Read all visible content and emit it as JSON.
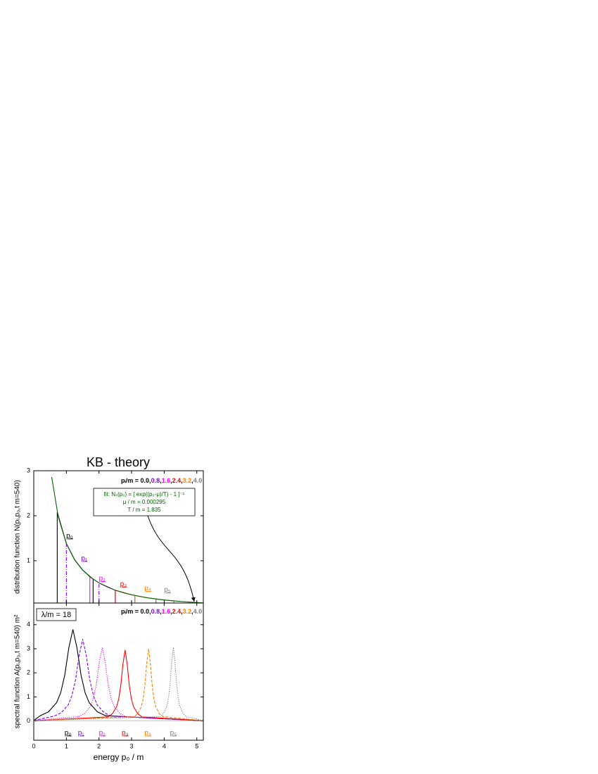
{
  "chart_data": [
    {
      "type": "line",
      "title": "KB - theory",
      "ylabel": "distribution function  N(pᵢ,p₀,t m=540)",
      "xlim": [
        0,
        5.2
      ],
      "ylim": [
        0.06,
        3
      ],
      "yticks": [
        1,
        2,
        3
      ],
      "legend_prefix": "pᵢ/m = ",
      "legend_separator": ",",
      "legend_values": [
        {
          "value": 0,
          "label": "0.0"
        },
        {
          "value": 0.8,
          "label": "0.8"
        },
        {
          "value": 1.6,
          "label": "1.6"
        },
        {
          "value": 2.4,
          "label": "2.4"
        },
        {
          "value": 3.2,
          "label": "3.2"
        },
        {
          "value": 4,
          "label": "4.0"
        }
      ],
      "annotations": [
        "fit:  Nₛ(p₀) = [ exp((p₀-μ)/T) - 1 ]⁻¹",
        "μ / m  =  0.000295",
        "T / m  =  1.835"
      ],
      "series": [
        {
          "name": "p₀",
          "color": "#000000",
          "style": "solid",
          "x": [
            0.72,
            0.72,
            1.0,
            1.25,
            1.5,
            1.82,
            1.82
          ],
          "values": [
            0.06,
            2.08,
            1.38,
            1.025,
            0.791,
            0.59,
            0.06
          ]
        },
        {
          "name": "p₁",
          "color": "#7f00ff",
          "style": "dash-dot",
          "x": [
            1.0,
            1.0,
            1.25,
            1.5,
            1.75,
            2.0,
            2.0
          ],
          "values": [
            0.06,
            1.38,
            1.025,
            0.791,
            0.627,
            0.507,
            0.06
          ]
        },
        {
          "name": "p₂",
          "color": "#ff00ff",
          "style": "solid",
          "x": [
            1.72,
            1.72,
            2.0,
            2.25,
            2.5,
            2.5
          ],
          "values": [
            0.06,
            0.643,
            0.507,
            0.415,
            0.344,
            0.06
          ]
        },
        {
          "name": "p₃",
          "color": "#ff0000",
          "style": "solid",
          "x": [
            2.5,
            2.5,
            2.8,
            3.1,
            3.1
          ],
          "values": [
            0.06,
            0.344,
            0.278,
            0.226,
            0.06
          ]
        },
        {
          "name": "p₄",
          "color": "#ff8000",
          "style": "solid",
          "x": [
            3.1,
            3.1,
            3.4,
            3.75,
            3.75
          ],
          "values": [
            0.06,
            0.226,
            0.186,
            0.149,
            0.06
          ]
        },
        {
          "name": "p₅",
          "color": "#808080",
          "style": "solid",
          "x": [
            3.75,
            3.75,
            4.0,
            4.3,
            4.3
          ],
          "values": [
            0.06,
            0.149,
            0.127,
            0.106,
            0.06
          ]
        },
        {
          "color": "#006400",
          "style": "solid",
          "x": [
            0.55,
            0.75,
            1.0,
            1.25,
            1.5,
            1.75,
            2.0,
            2.5,
            3.0,
            3.5,
            4.0,
            4.5,
            5.0,
            5.2
          ],
          "values": [
            2.86,
            1.98,
            1.38,
            1.025,
            0.791,
            0.627,
            0.507,
            0.344,
            0.242,
            0.174,
            0.127,
            0.094,
            0.07,
            0.062
          ]
        }
      ]
    },
    {
      "type": "line",
      "xlabel": "energy  p₀ / m",
      "ylabel": "spectral function  A(pᵢ,p₀,t m=540)  m²",
      "xlim": [
        0,
        5.2
      ],
      "xticks": [
        0,
        1,
        2,
        3,
        4,
        5
      ],
      "ylim": [
        -0.8,
        4.9
      ],
      "yticks": [
        0,
        1,
        2,
        3,
        4
      ],
      "annotations": [
        "λ/m = 18"
      ],
      "legend_prefix": "pᵢ/m = ",
      "legend_separator": ",",
      "legend_values": [
        {
          "value": 0,
          "label": "0.0"
        },
        {
          "value": 0.8,
          "label": "0.8"
        },
        {
          "value": 1.6,
          "label": "1.6"
        },
        {
          "value": 2.4,
          "label": "2.4"
        },
        {
          "value": 3.2,
          "label": "3.2"
        },
        {
          "value": 4,
          "label": "4.0"
        }
      ],
      "series": [
        {
          "name": "p₀",
          "color": "#000000",
          "style": "solid",
          "x": [
            0,
            0.2,
            0.45,
            0.7,
            0.825,
            0.95,
            1.075,
            1.2,
            1.325,
            1.45,
            1.575,
            1.7,
            1.95,
            2.2,
            5.2
          ],
          "values": [
            0.02,
            0.22,
            0.38,
            0.76,
            1.17,
            1.9,
            3.04,
            3.8,
            3.04,
            1.9,
            1.17,
            0.76,
            0.38,
            0.22,
            0.01
          ]
        },
        {
          "name": "p₁",
          "color": "#7f00ff",
          "style": "dashed",
          "x": [
            0,
            0.62,
            0.84,
            1.06,
            1.17,
            1.28,
            1.39,
            1.5,
            1.61,
            1.72,
            1.83,
            1.94,
            2.16,
            2.38,
            5.2
          ],
          "values": [
            0.02,
            0.2,
            0.34,
            0.68,
            1.05,
            1.7,
            2.72,
            3.4,
            2.72,
            1.7,
            1.05,
            0.68,
            0.34,
            0.2,
            0.01
          ]
        },
        {
          "name": "p₂",
          "color": "#ff00ff",
          "style": "dotted",
          "x": [
            0,
            1.38,
            1.56,
            1.74,
            1.83,
            1.92,
            2.01,
            2.1,
            2.19,
            2.28,
            2.37,
            2.46,
            2.64,
            2.82,
            5.2
          ],
          "values": [
            0.02,
            0.18,
            0.31,
            0.61,
            0.94,
            1.53,
            2.44,
            3.05,
            2.44,
            1.53,
            0.94,
            0.61,
            0.31,
            0.18,
            0.01
          ]
        },
        {
          "name": "p₃",
          "color": "#ff0000",
          "style": "solid",
          "x": [
            0,
            2.28,
            2.41,
            2.54,
            2.605,
            2.67,
            2.735,
            2.8,
            2.865,
            2.93,
            2.995,
            3.06,
            3.19,
            3.32,
            5.2
          ],
          "values": [
            0.01,
            0.17,
            0.3,
            0.59,
            0.91,
            1.48,
            2.36,
            2.95,
            2.36,
            1.48,
            0.91,
            0.59,
            0.3,
            0.17,
            0.01
          ]
        },
        {
          "name": "p₄",
          "color": "#ff8000",
          "style": "dashed",
          "x": [
            0,
            3.08,
            3.19,
            3.3,
            3.355,
            3.41,
            3.465,
            3.52,
            3.575,
            3.63,
            3.685,
            3.74,
            3.85,
            3.96,
            5.2
          ],
          "values": [
            0.01,
            0.18,
            0.3,
            0.6,
            0.92,
            1.5,
            2.4,
            3.0,
            2.4,
            1.5,
            0.92,
            0.6,
            0.3,
            0.18,
            0.01
          ]
        },
        {
          "name": "p₅",
          "color": "#808080",
          "style": "dotted",
          "x": [
            0,
            3.88,
            3.98,
            4.08,
            4.13,
            4.18,
            4.23,
            4.28,
            4.33,
            4.38,
            4.43,
            4.48,
            4.58,
            4.68,
            5.2
          ],
          "values": [
            0.01,
            0.18,
            0.31,
            0.61,
            0.94,
            1.53,
            2.44,
            3.05,
            2.44,
            1.53,
            0.94,
            0.61,
            0.31,
            0.18,
            0.02
          ]
        }
      ]
    }
  ]
}
